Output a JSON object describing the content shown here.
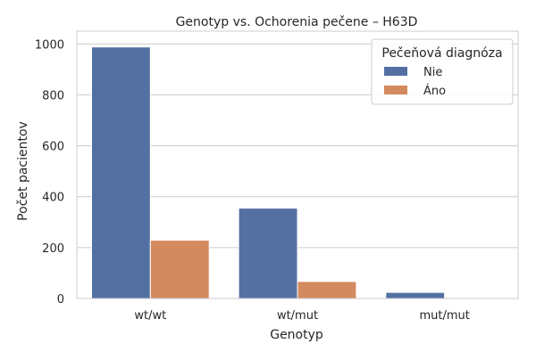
{
  "chart_data": {
    "type": "bar",
    "title": "Genotyp vs. Ochorenia pečene – H63D",
    "xlabel": "Genotyp",
    "ylabel": "Počet pacientov",
    "categories": [
      "wt/wt",
      "wt/mut",
      "mut/mut"
    ],
    "series": [
      {
        "name": "Nie",
        "values": [
          988,
          355,
          24
        ],
        "color": "#5470a3"
      },
      {
        "name": "Áno",
        "values": [
          229,
          67,
          3
        ],
        "color": "#d48a5f"
      }
    ],
    "ylim": [
      0,
      1000
    ],
    "yticks": [
      0,
      200,
      400,
      600,
      800,
      1000
    ],
    "grid": "y",
    "legend": {
      "title": "Pečeňová diagnóza",
      "placement": "top-right"
    }
  }
}
